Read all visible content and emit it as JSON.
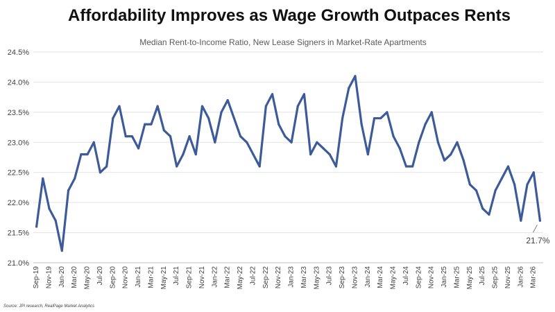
{
  "colors": {
    "series": "#3d5a99",
    "grid": "#e3e3e3",
    "text": "#404040"
  },
  "chart_data": {
    "type": "line",
    "title": "Affordability Improves as Wage Growth Outpaces Rents",
    "subtitle": "Median Rent-to-Income Ratio, New Lease Signers in Market-Rate Apartments",
    "source": "Source: JPI research, RealPage Market Analytics",
    "xlabel": "",
    "ylabel": "",
    "ylim": [
      21.0,
      24.5
    ],
    "yticks": [
      "21.0%",
      "21.5%",
      "22.0%",
      "22.5%",
      "23.0%",
      "23.5%",
      "24.0%",
      "24.5%"
    ],
    "grid": true,
    "legend": "none",
    "x": [
      "Sep-19",
      "Oct-19",
      "Nov-19",
      "Dec-19",
      "Jan-20",
      "Feb-20",
      "Mar-20",
      "Apr-20",
      "May-20",
      "Jun-20",
      "Jul-20",
      "Aug-20",
      "Sep-20",
      "Oct-20",
      "Nov-20",
      "Dec-20",
      "Jan-21",
      "Feb-21",
      "Mar-21",
      "Apr-21",
      "May-21",
      "Jun-21",
      "Jul-21",
      "Aug-21",
      "Sep-21",
      "Oct-21",
      "Nov-21",
      "Dec-21",
      "Jan-22",
      "Feb-22",
      "Mar-22",
      "Apr-22",
      "May-22",
      "Jun-22",
      "Jul-22",
      "Aug-22",
      "Sep-22",
      "Oct-22",
      "Nov-22",
      "Dec-22",
      "Jan-23",
      "Feb-23",
      "Mar-23",
      "Apr-23",
      "May-23",
      "Jun-23",
      "Jul-23",
      "Aug-23",
      "Sep-23",
      "Oct-23",
      "Nov-23",
      "Dec-23",
      "Jan-24",
      "Feb-24",
      "Mar-24",
      "Apr-24",
      "May-24",
      "Jun-24",
      "Jul-24",
      "Aug-24",
      "Sep-24",
      "Oct-24",
      "Nov-24",
      "Dec-24",
      "Jan-25",
      "Feb-25",
      "Mar-25",
      "Apr-25",
      "May-25",
      "Jun-25",
      "Jul-25",
      "Aug-25",
      "Sep-25",
      "Oct-25",
      "Nov-25",
      "Dec-25",
      "Jan-26",
      "Feb-26",
      "Mar-26",
      "Apr-26"
    ],
    "x_tick_labels": [
      "Sep-19",
      "Nov-19",
      "Jan-20",
      "Mar-20",
      "May-20",
      "Jul-20",
      "Sep-20",
      "Nov-20",
      "Jan-21",
      "Mar-21",
      "May-21",
      "Jul-21",
      "Sep-21",
      "Nov-21",
      "Jan-22",
      "Mar-22",
      "May-22",
      "Jul-22",
      "Sep-22",
      "Nov-22",
      "Jan-23",
      "Mar-23",
      "May-23",
      "Jul-23",
      "Sep-23",
      "Nov-23",
      "Jan-24",
      "Mar-24",
      "May-24",
      "Jul-24",
      "Sep-24",
      "Nov-24",
      "Jan-25",
      "Mar-25",
      "May-25",
      "Jul-25",
      "Sep-25",
      "Nov-25",
      "Jan-26",
      "Mar-26"
    ],
    "series": [
      {
        "values": [
          21.6,
          22.4,
          21.9,
          21.7,
          21.2,
          22.2,
          22.4,
          22.8,
          22.8,
          23.0,
          22.5,
          22.6,
          23.4,
          23.6,
          23.1,
          23.1,
          22.9,
          23.3,
          23.3,
          23.6,
          23.2,
          23.1,
          22.6,
          22.8,
          23.1,
          22.8,
          23.6,
          23.4,
          23.0,
          23.5,
          23.7,
          23.4,
          23.1,
          23.0,
          22.8,
          22.6,
          23.6,
          23.8,
          23.3,
          23.1,
          23.0,
          23.6,
          23.8,
          22.8,
          23.0,
          22.9,
          22.8,
          22.6,
          23.4,
          23.9,
          24.1,
          23.3,
          22.8,
          23.4,
          23.4,
          23.5,
          23.1,
          22.9,
          22.6,
          22.6,
          23.0,
          23.3,
          23.5,
          23.0,
          22.7,
          22.8,
          23.0,
          22.7,
          22.3,
          22.2,
          21.9,
          21.8,
          22.2,
          22.4,
          22.6,
          22.3,
          21.7,
          22.3,
          22.5,
          21.7
        ]
      }
    ],
    "annotations": [
      {
        "x": "Apr-26",
        "y": 21.7,
        "text": "21.7%"
      }
    ]
  }
}
